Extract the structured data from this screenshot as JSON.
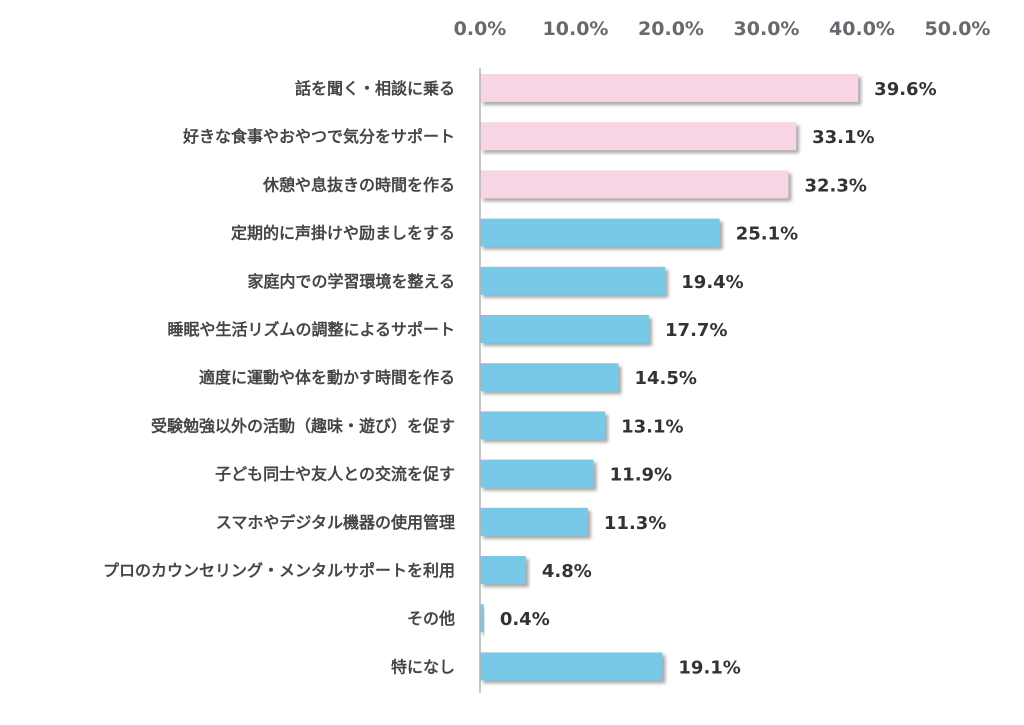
{
  "chart_data": {
    "type": "bar",
    "orientation": "horizontal",
    "x_ticks": [
      "0.0%",
      "10.0%",
      "20.0%",
      "30.0%",
      "40.0%",
      "50.0%"
    ],
    "xlim": [
      0,
      50
    ],
    "tick_position": "top",
    "categories": [
      "話を聞く・相談に乗る",
      "好きな食事やおやつで気分をサポート",
      "休憩や息抜きの時間を作る",
      "定期的に声掛けや励ましをする",
      "家庭内での学習環境を整える",
      "睡眠や生活リズムの調整によるサポート",
      "適度に運動や体を動かす時間を作る",
      "受験勉強以外の活動（趣味・遊び）を促す",
      "子ども同士や友人との交流を促す",
      "スマホやデジタル機器の使用管理",
      "プロのカウンセリング・メンタルサポートを利用",
      "その他",
      "特になし"
    ],
    "values": [
      39.6,
      33.1,
      32.3,
      25.1,
      19.4,
      17.7,
      14.5,
      13.1,
      11.9,
      11.3,
      4.8,
      0.4,
      19.1
    ],
    "value_labels": [
      "39.6%",
      "33.1%",
      "32.3%",
      "25.1%",
      "19.4%",
      "17.7%",
      "14.5%",
      "13.1%",
      "11.9%",
      "11.3%",
      "4.8%",
      "0.4%",
      "19.1%"
    ],
    "highlight_count": 3,
    "colors": {
      "highlight": "#f7d5e4",
      "normal": "#78c8e8",
      "axis": "#b3b3b3",
      "shadow": "#9a9a9a"
    },
    "grid": false,
    "legend": "none"
  }
}
